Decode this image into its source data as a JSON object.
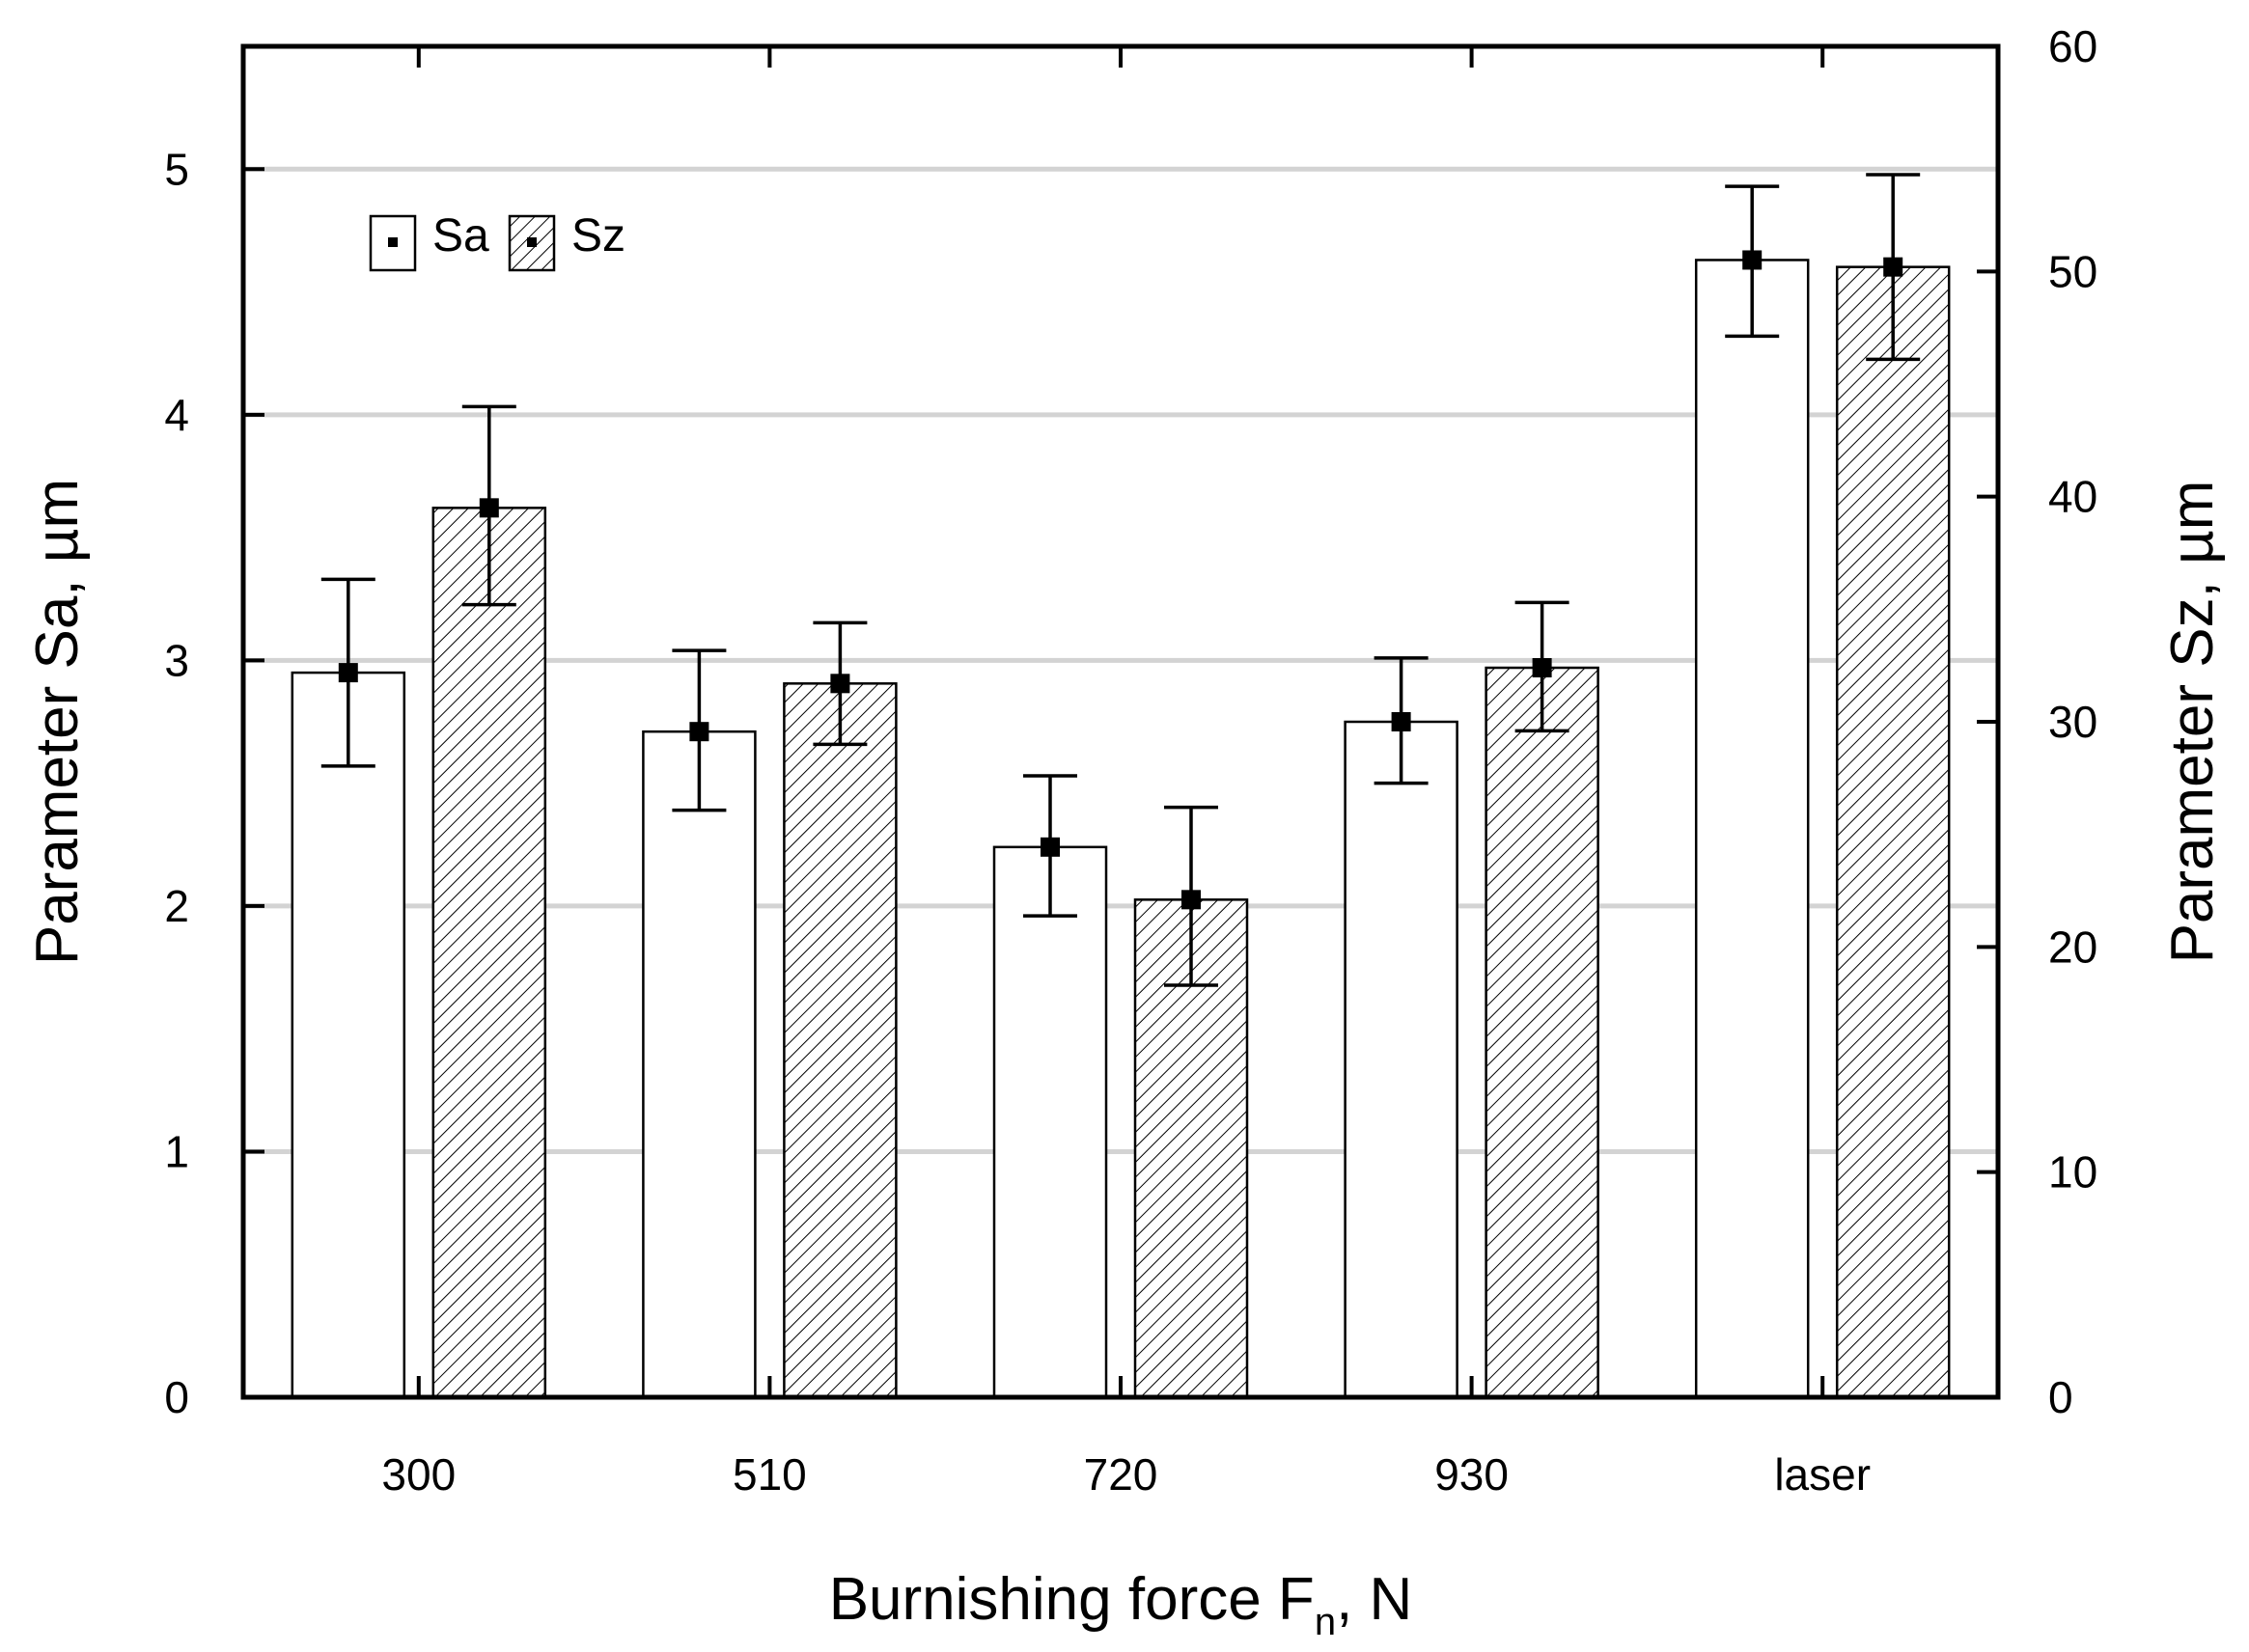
{
  "chart_data": {
    "type": "bar",
    "categories": [
      "300",
      "510",
      "720",
      "930",
      "laser"
    ],
    "xlabel": "Burnishing force F",
    "xlabel_subscript": "n",
    "xlabel_suffix": ", N",
    "y_left": {
      "label": "Parameter Sa, µm",
      "range": [
        0,
        5.5
      ],
      "ticks": [
        0,
        1,
        2,
        3,
        4,
        5
      ],
      "tick_labels": [
        "0",
        "1",
        "2",
        "3",
        "4",
        "5"
      ]
    },
    "y_right": {
      "label": "Parameter Sz, µm",
      "range": [
        0,
        60
      ],
      "ticks": [
        0,
        10,
        20,
        30,
        40,
        50,
        60
      ],
      "tick_labels": [
        "0",
        "10",
        "20",
        "30",
        "40",
        "50",
        "60"
      ]
    },
    "grid": "horizontal",
    "legend_position": "top-left",
    "series": [
      {
        "name": "Sa",
        "axis": "left",
        "fill": "white",
        "values": [
          2.95,
          2.71,
          2.24,
          2.75,
          4.63
        ],
        "error_low": [
          2.57,
          2.39,
          1.96,
          2.5,
          4.32
        ],
        "error_high": [
          3.33,
          3.04,
          2.53,
          3.01,
          4.93
        ]
      },
      {
        "name": "Sz",
        "axis": "right",
        "fill": "hatched",
        "values": [
          39.5,
          31.7,
          22.1,
          32.4,
          50.2
        ],
        "error_low": [
          35.2,
          29.0,
          18.3,
          29.6,
          46.1
        ],
        "error_high": [
          44.0,
          34.4,
          26.2,
          35.3,
          54.3
        ]
      }
    ],
    "colors": {
      "bar_stroke": "#000000",
      "grid": "#d3d3d3",
      "hatch": "#000000"
    }
  }
}
